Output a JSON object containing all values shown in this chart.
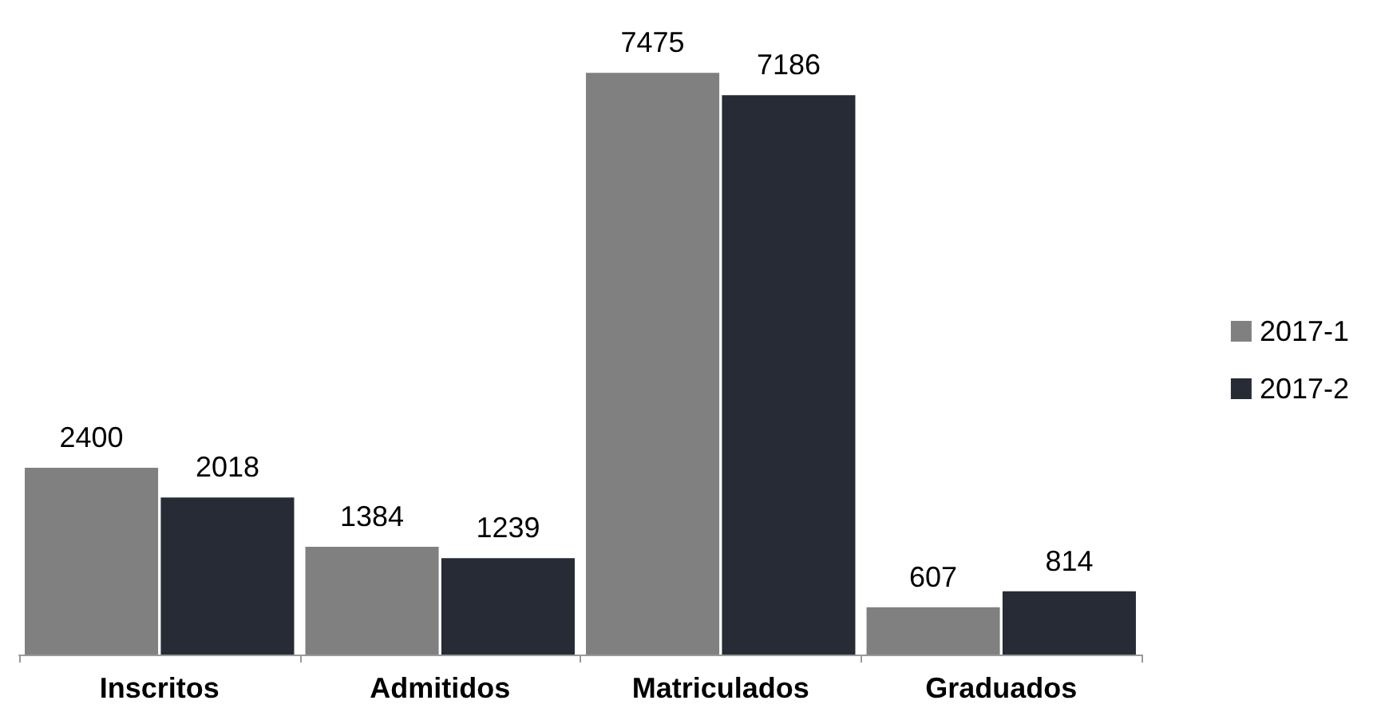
{
  "chart_data": {
    "type": "bar",
    "categories": [
      "Inscritos",
      "Admitidos",
      "Matriculados",
      "Graduados"
    ],
    "series": [
      {
        "name": "2017-1",
        "color": "#808080",
        "values": [
          2400,
          1384,
          7475,
          607
        ]
      },
      {
        "name": "2017-2",
        "color": "#262b35",
        "values": [
          2018,
          1239,
          7186,
          814
        ]
      }
    ],
    "data_labels": true,
    "legend": "right",
    "grid": false
  }
}
